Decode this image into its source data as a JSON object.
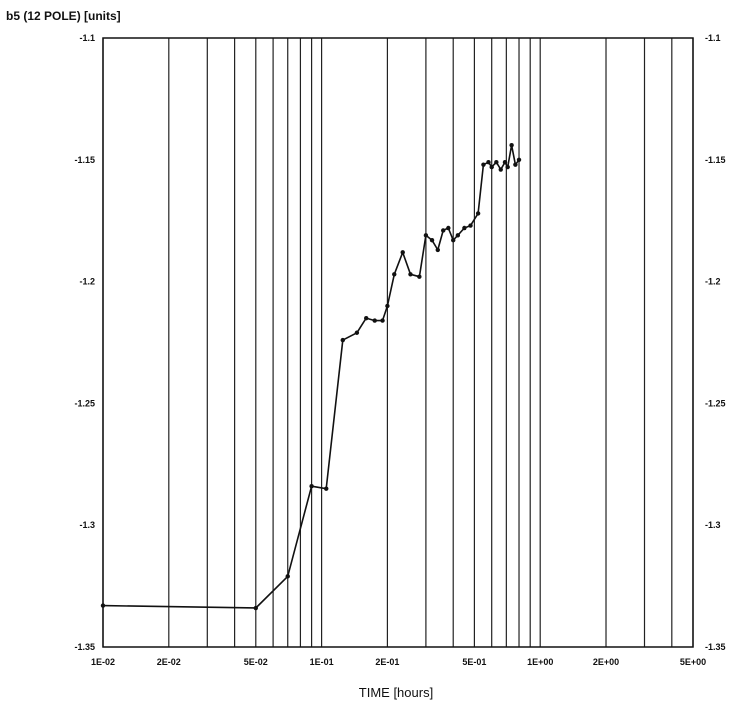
{
  "chart_data": {
    "type": "line",
    "title": "b5 (12 POLE) [units]",
    "xlabel": "TIME [hours]",
    "ylabel": "b5 (12 POLE) [units]",
    "x_scale": "log",
    "xlim": [
      0.01,
      5
    ],
    "ylim": [
      -1.35,
      -1.1
    ],
    "grid": "vertical",
    "x_tick_labels": [
      {
        "value": 0.01,
        "label": "1E-02"
      },
      {
        "value": 0.02,
        "label": "2E-02"
      },
      {
        "value": 0.05,
        "label": "5E-02"
      },
      {
        "value": 0.1,
        "label": "1E-01"
      },
      {
        "value": 0.2,
        "label": "2E-01"
      },
      {
        "value": 0.5,
        "label": "5E-01"
      },
      {
        "value": 1,
        "label": "1E+00"
      },
      {
        "value": 2,
        "label": "2E+00"
      },
      {
        "value": 5,
        "label": "5E+00"
      }
    ],
    "x_grid_values": [
      0.01,
      0.02,
      0.03,
      0.04,
      0.05,
      0.06,
      0.07,
      0.08,
      0.09,
      0.1,
      0.2,
      0.3,
      0.4,
      0.5,
      0.6,
      0.7,
      0.8,
      0.9,
      1,
      2,
      3,
      4,
      5
    ],
    "y_ticks": [
      {
        "value": -1.1,
        "label": "-1.1"
      },
      {
        "value": -1.15,
        "label": "-1.15"
      },
      {
        "value": -1.2,
        "label": "-1.2"
      },
      {
        "value": -1.25,
        "label": "-1.25"
      },
      {
        "value": -1.3,
        "label": "-1.3"
      },
      {
        "value": -1.35,
        "label": "-1.35"
      }
    ],
    "series": [
      {
        "x": [
          0.01,
          0.05,
          0.07,
          0.09,
          0.105,
          0.125,
          0.145,
          0.16,
          0.175,
          0.19,
          0.2,
          0.215,
          0.235,
          0.255,
          0.28,
          0.3,
          0.32,
          0.34,
          0.36,
          0.38,
          0.4,
          0.42,
          0.45,
          0.48,
          0.52,
          0.55,
          0.58,
          0.6,
          0.63,
          0.66,
          0.69,
          0.71,
          0.74,
          0.77,
          0.8
        ],
        "y": [
          -1.333,
          -1.334,
          -1.321,
          -1.284,
          -1.285,
          -1.224,
          -1.221,
          -1.215,
          -1.216,
          -1.216,
          -1.21,
          -1.197,
          -1.188,
          -1.197,
          -1.198,
          -1.181,
          -1.183,
          -1.187,
          -1.179,
          -1.178,
          -1.183,
          -1.181,
          -1.178,
          -1.177,
          -1.172,
          -1.152,
          -1.151,
          -1.153,
          -1.151,
          -1.154,
          -1.151,
          -1.153,
          -1.144,
          -1.152,
          -1.15
        ]
      }
    ]
  }
}
